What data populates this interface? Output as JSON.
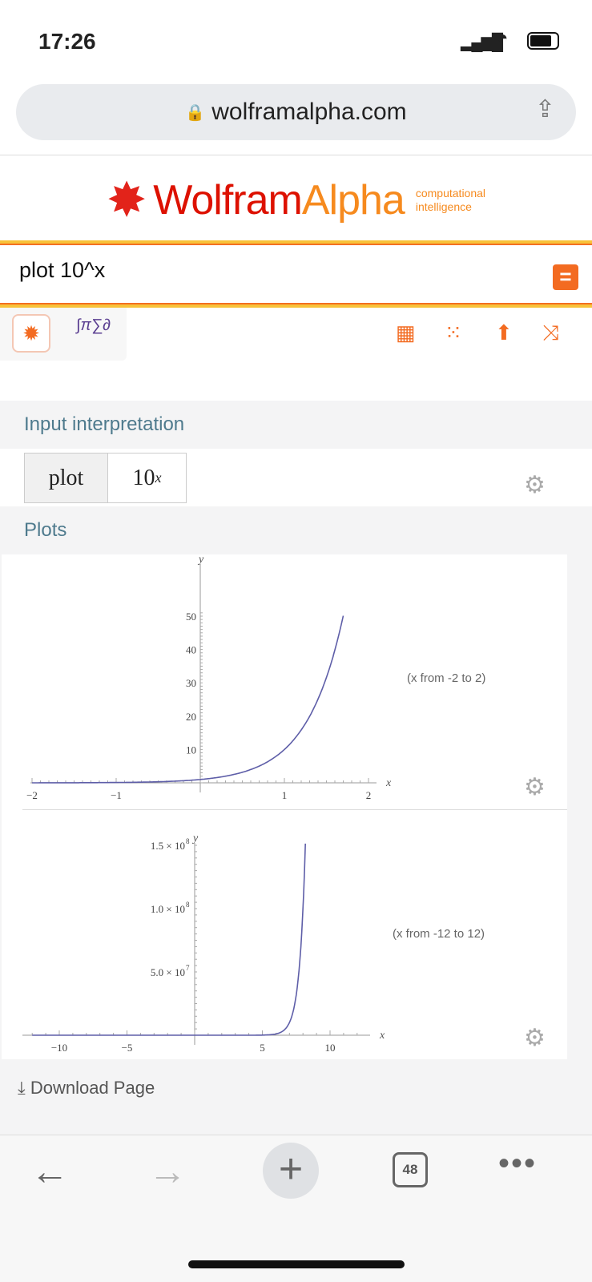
{
  "status": {
    "time": "17:26"
  },
  "browser": {
    "url": "wolframalpha.com",
    "tab_count": "48"
  },
  "logo": {
    "name1": "Wolfram",
    "name2": "Alpha",
    "tagline1": "computational",
    "tagline2": "intelligence"
  },
  "search": {
    "query": "plot 10^x"
  },
  "pods": {
    "input_title": "Input interpretation",
    "input_cells": [
      "plot",
      "10"
    ],
    "input_exponent": "x",
    "plots_title": "Plots"
  },
  "colors": {
    "accent": "#f36b21",
    "curve": "#5e5ea8",
    "pod_title": "#4e7a8d"
  },
  "chart_data": [
    {
      "type": "line",
      "function": "10^x",
      "note": "(x from -2 to 2)",
      "xlabel": "x",
      "ylabel": "y",
      "xlim": [
        -2,
        2
      ],
      "ylim": [
        0,
        50
      ],
      "xticks": [
        "-2",
        "-1",
        "1",
        "2"
      ],
      "yticks": [
        "10",
        "20",
        "30",
        "40",
        "50"
      ],
      "xtick_values": [
        -2,
        -1,
        1,
        2
      ],
      "ytick_values": [
        10,
        20,
        30,
        40,
        50
      ],
      "x_end": 1.7
    },
    {
      "type": "line",
      "function": "10^x",
      "note": "(x from -12 to 12)",
      "xlabel": "x",
      "ylabel": "y",
      "xlim": [
        -12,
        12
      ],
      "ylim": [
        0,
        150000000
      ],
      "xticks": [
        "-10",
        "-5",
        "5",
        "10"
      ],
      "yticks": [
        "5.0 × 10",
        "1.0 × 10",
        "1.5 × 10"
      ],
      "ytick_exps": [
        "7",
        "8",
        "8"
      ],
      "xtick_values": [
        -10,
        -5,
        5,
        10
      ],
      "ytick_values": [
        50000000,
        100000000,
        150000000
      ],
      "x_end": 8.18
    }
  ],
  "footer": {
    "download": "Download Page"
  }
}
